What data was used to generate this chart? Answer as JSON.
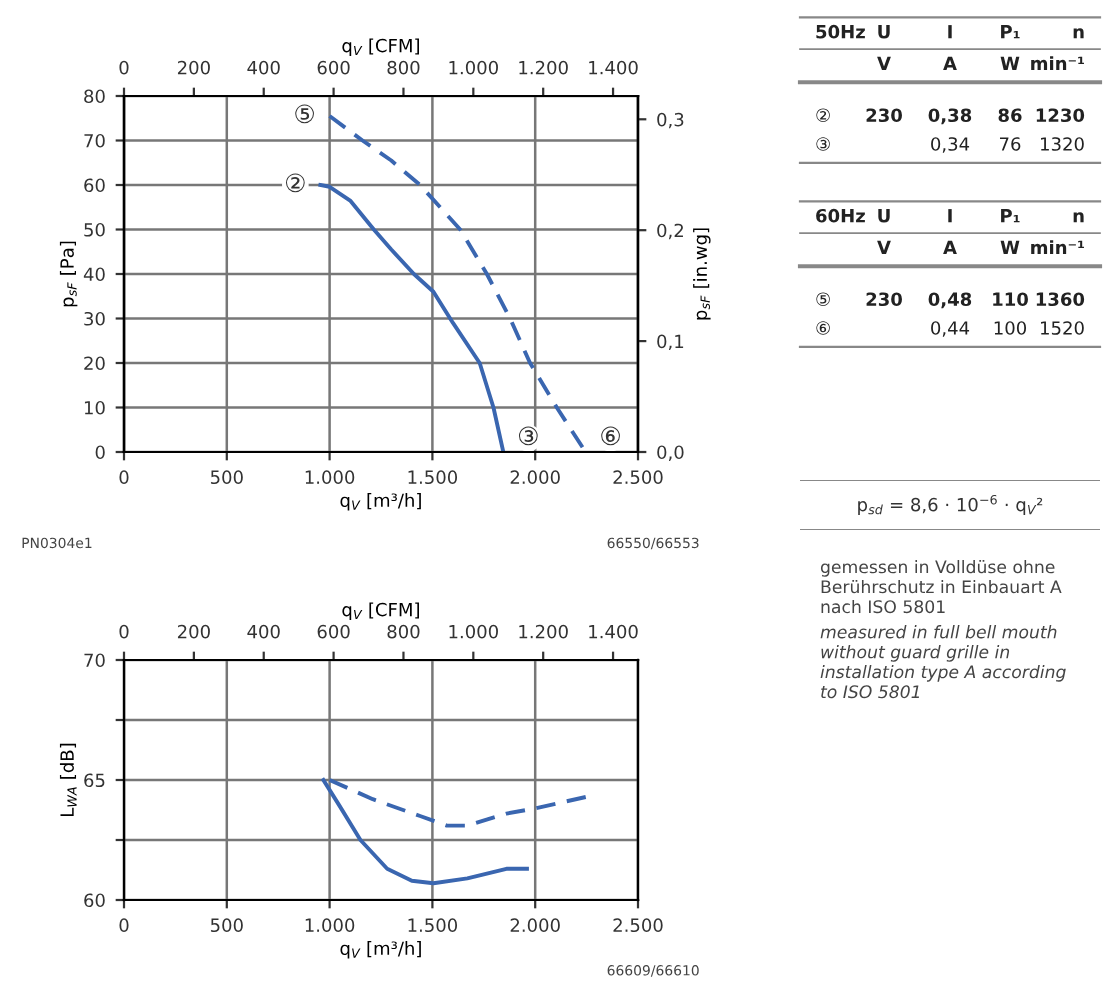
{
  "chart_data": [
    {
      "type": "line",
      "xlabel": "q$_{V}$ [m³/h]",
      "ylabel": "p$_{sF}$ [Pa]",
      "y2label": "p$_{sF}$ [in.wg]",
      "x2label": "q$_{V}$ [CFM]",
      "xlim": [
        0,
        2500
      ],
      "xticks": [
        0,
        500,
        {
          "value": 1000,
          "label": "1.000"
        },
        {
          "value": 1500,
          "label": "1.500"
        },
        {
          "value": 2000,
          "label": "2.000"
        },
        {
          "value": 2500,
          "label": "2.500"
        }
      ],
      "ylim": [
        0,
        80
      ],
      "yticks": [
        0,
        10,
        20,
        30,
        40,
        50,
        60,
        70,
        80
      ],
      "x2lim": [
        0,
        1471.4
      ],
      "x2ticks": [
        0,
        200,
        400,
        600,
        800,
        {
          "value": 1000,
          "label": "1.000"
        },
        {
          "value": 1200,
          "label": "1.200"
        },
        {
          "value": 1400,
          "label": "1.400"
        }
      ],
      "y2lim": [
        0,
        0.321
      ],
      "y2ticks": [
        {
          "value": 0,
          "label": "0,0"
        },
        {
          "value": 0.1,
          "label": "0,1"
        },
        {
          "value": 0.2,
          "label": "0,2"
        },
        {
          "value": 0.3,
          "label": "0,3"
        }
      ],
      "grid": true,
      "legend": false,
      "series": [
        {
          "color": "#3a66b0",
          "line_style": "solid",
          "x": [
            955,
            1000,
            1100,
            1215,
            1300,
            1410,
            1505,
            1600,
            1730,
            1797,
            1845
          ],
          "values": [
            60,
            59.6,
            56.5,
            50,
            45.5,
            40,
            36,
            29,
            20,
            10,
            0
          ]
        },
        {
          "color": "#3a66b0",
          "line_style": "dashed",
          "x": [
            1000,
            1160,
            1300,
            1440,
            1635,
            1765,
            1878,
            1975,
            2105,
            2245
          ],
          "values": [
            75.5,
            70,
            65.5,
            60,
            50,
            40,
            30,
            20,
            10,
            0
          ]
        }
      ],
      "annotations": [
        {
          "text": "②",
          "x": 955,
          "y": 60
        },
        {
          "text": "③",
          "x": 1845,
          "y": 0
        },
        {
          "text": "⑤",
          "x": 1000,
          "y": 75.5
        },
        {
          "text": "⑥",
          "x": 2245,
          "y": 0
        },
        "PN0304e1",
        "66550/66553"
      ]
    },
    {
      "type": "line",
      "xlabel": "q$_{V}$ [m³/h]",
      "ylabel": "L$_{WA}$ [dB]",
      "x2label": "q$_{V}$ [CFM]",
      "xlim": [
        0,
        2500
      ],
      "xticks": [
        0,
        500,
        {
          "value": 1000,
          "label": "1.000"
        },
        {
          "value": 1500,
          "label": "1.500"
        },
        {
          "value": 2000,
          "label": "2.000"
        },
        {
          "value": 2500,
          "label": "2.500"
        }
      ],
      "ylim": [
        60,
        70
      ],
      "yticks": [
        60,
        {
          "value": 62.5,
          "label": null
        },
        65,
        {
          "value": 67.5,
          "label": null
        },
        70
      ],
      "x2lim": [
        0,
        1471.4
      ],
      "x2ticks": [
        0,
        200,
        400,
        600,
        800,
        {
          "value": 1000,
          "label": "1.000"
        },
        {
          "value": 1200,
          "label": "1.200"
        },
        {
          "value": 1400,
          "label": "1.400"
        }
      ],
      "grid": true,
      "legend": false,
      "series": [
        {
          "color": "#3a66b0",
          "line_style": "solid",
          "x": [
            970,
            1050,
            1150,
            1280,
            1400,
            1505,
            1670,
            1860,
            1960
          ],
          "values": [
            65.0,
            63.9,
            62.5,
            61.3,
            60.8,
            60.7,
            60.9,
            61.3,
            61.3
          ]
        },
        {
          "color": "#3a66b0",
          "line_style": "dashed",
          "x": [
            1000,
            1210,
            1440,
            1570,
            1670,
            1860,
            1990,
            2250
          ],
          "values": [
            65.0,
            64.2,
            63.5,
            63.1,
            63.1,
            63.6,
            63.8,
            64.3
          ]
        }
      ],
      "annotations": [
        "66609/66610"
      ]
    },
    {
      "type": "other",
      "categories": [
        "50Hz",
        "U",
        "I",
        "P₁",
        "n"
      ],
      "annotations": [
        "V",
        "A",
        "W",
        "min⁻¹",
        "②",
        "230",
        "0,38",
        "86",
        "1230",
        "③",
        "0,34",
        "76",
        "1320"
      ]
    },
    {
      "type": "other",
      "categories": [
        "60Hz",
        "U",
        "I",
        "P₁",
        "n"
      ],
      "annotations": [
        "V",
        "A",
        "W",
        "min⁻¹",
        "⑤",
        "230",
        "0,48",
        "110",
        "1360",
        "⑥",
        "0,44",
        "100",
        "1520"
      ]
    },
    {
      "type": "other",
      "annotations": [
        "p$_{sd}$ = 8,6 · 10$^{−6}$ · q$_{V}$²"
      ]
    },
    {
      "type": "other",
      "annotations": [
        "gemessen in Volldüse ohne\nBerührschutz in Einbauart A\nnach ISO 5801",
        "measured in full bell mouth\nwithout guard grille in\ninstallation type A according\nto ISO 5801"
      ]
    }
  ]
}
